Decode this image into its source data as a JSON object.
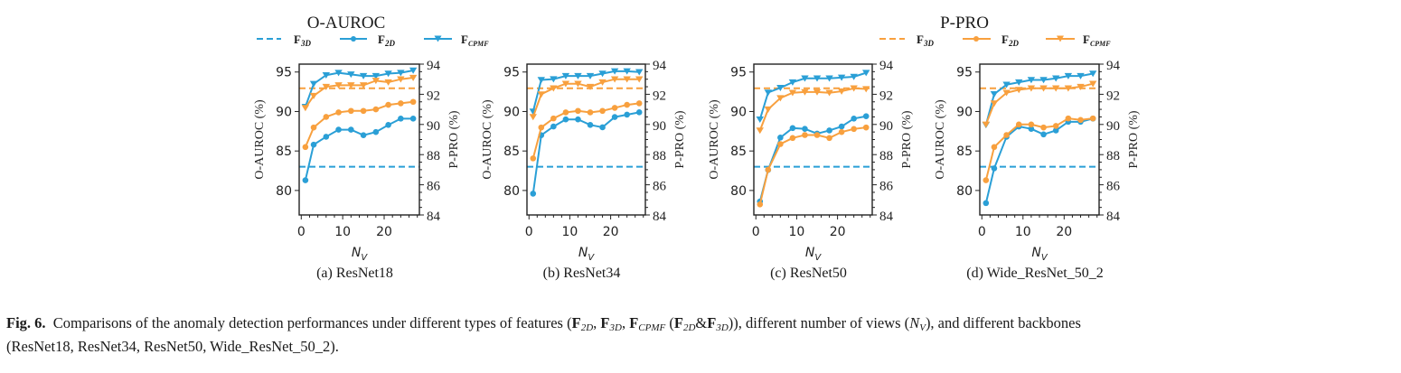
{
  "colors": {
    "blue": "#2a9fd6",
    "orange": "#f8a03e",
    "axis": "#222222",
    "text": "#1a1a1a"
  },
  "legends": [
    {
      "title": "O-AUROC",
      "color_key": "blue",
      "entries": [
        {
          "label": "F",
          "sub": "3D",
          "style": "dashed",
          "marker": "none"
        },
        {
          "label": "F",
          "sub": "2D",
          "style": "solid",
          "marker": "circle"
        },
        {
          "label": "F",
          "sub": "CPMF",
          "style": "solid",
          "marker": "triangle-down"
        }
      ]
    },
    {
      "title": "P-PRO",
      "color_key": "orange",
      "entries": [
        {
          "label": "F",
          "sub": "3D",
          "style": "dashed",
          "marker": "none"
        },
        {
          "label": "F",
          "sub": "2D",
          "style": "solid",
          "marker": "circle"
        },
        {
          "label": "F",
          "sub": "CPMF",
          "style": "solid",
          "marker": "triangle-down"
        }
      ]
    }
  ],
  "chart_data": [
    {
      "type": "line",
      "title": "(a) ResNet18",
      "xlabel": "N_V",
      "ylabel": "O-AUROC (%)",
      "y2label": "P-PRO (%)",
      "xlim": [
        -0.5,
        28.5
      ],
      "ylim": [
        76.9,
        96.0
      ],
      "y2lim": [
        84,
        94
      ],
      "xticks": [
        0,
        10,
        20
      ],
      "yticks": [
        80,
        85,
        90,
        95
      ],
      "y2ticks": [
        84,
        86,
        88,
        90,
        92,
        94
      ],
      "x": [
        1,
        3,
        6,
        9,
        12,
        15,
        18,
        21,
        24,
        27
      ],
      "series": [
        {
          "name": "O-AUROC F2D",
          "axis": "left",
          "color": "blue",
          "marker": "circle",
          "values": [
            81.3,
            85.8,
            86.8,
            87.7,
            87.7,
            87.0,
            87.4,
            88.3,
            89.1,
            89.1
          ]
        },
        {
          "name": "O-AUROC FCPMF",
          "axis": "left",
          "color": "blue",
          "marker": "triangle-down",
          "values": [
            90.6,
            93.5,
            94.6,
            94.9,
            94.7,
            94.5,
            94.5,
            94.8,
            94.9,
            95.2
          ]
        },
        {
          "name": "P-PRO F2D",
          "axis": "right",
          "color": "orange",
          "marker": "circle",
          "values": [
            88.5,
            89.8,
            90.5,
            90.8,
            90.9,
            90.9,
            91.0,
            91.3,
            91.4,
            91.5
          ]
        },
        {
          "name": "P-PRO FCPMF",
          "axis": "right",
          "color": "orange",
          "marker": "triangle-down",
          "values": [
            91.1,
            91.9,
            92.5,
            92.6,
            92.6,
            92.6,
            92.9,
            92.8,
            93.0,
            93.1
          ]
        }
      ],
      "baselines": [
        {
          "name": "O-AUROC F3D",
          "axis": "left",
          "color": "blue",
          "value": 83.0
        },
        {
          "name": "P-PRO F3D",
          "axis": "right",
          "color": "orange",
          "value": 92.4
        }
      ]
    },
    {
      "type": "line",
      "title": "(b) ResNet34",
      "xlabel": "N_V",
      "ylabel": "O-AUROC (%)",
      "y2label": "P-PRO (%)",
      "xlim": [
        -0.5,
        28.5
      ],
      "ylim": [
        76.9,
        96.0
      ],
      "y2lim": [
        84,
        94
      ],
      "xticks": [
        0,
        10,
        20
      ],
      "yticks": [
        80,
        85,
        90,
        95
      ],
      "y2ticks": [
        84,
        86,
        88,
        90,
        92,
        94
      ],
      "x": [
        1,
        3,
        6,
        9,
        12,
        15,
        18,
        21,
        24,
        27
      ],
      "series": [
        {
          "name": "O-AUROC F2D",
          "axis": "left",
          "color": "blue",
          "marker": "circle",
          "values": [
            79.6,
            87.0,
            88.1,
            89.0,
            89.0,
            88.3,
            88.0,
            89.3,
            89.6,
            89.9
          ]
        },
        {
          "name": "O-AUROC FCPMF",
          "axis": "left",
          "color": "blue",
          "marker": "triangle-down",
          "values": [
            90.0,
            94.0,
            94.1,
            94.5,
            94.5,
            94.5,
            94.8,
            95.1,
            95.1,
            95.0
          ]
        },
        {
          "name": "P-PRO F2D",
          "axis": "right",
          "color": "orange",
          "marker": "circle",
          "values": [
            87.75,
            89.8,
            90.4,
            90.8,
            90.9,
            90.8,
            90.9,
            91.1,
            91.3,
            91.4
          ]
        },
        {
          "name": "P-PRO FCPMF",
          "axis": "right",
          "color": "orange",
          "marker": "triangle-down",
          "values": [
            90.5,
            92.0,
            92.4,
            92.7,
            92.7,
            92.5,
            92.8,
            93.0,
            93.0,
            93.0
          ]
        }
      ],
      "baselines": [
        {
          "name": "O-AUROC F3D",
          "axis": "left",
          "color": "blue",
          "value": 83.0
        },
        {
          "name": "P-PRO F3D",
          "axis": "right",
          "color": "orange",
          "value": 92.4
        }
      ]
    },
    {
      "type": "line",
      "title": "(c) ResNet50",
      "xlabel": "N_V",
      "ylabel": "O-AUROC (%)",
      "y2label": "P-PRO (%)",
      "xlim": [
        -0.5,
        28.5
      ],
      "ylim": [
        76.9,
        96.0
      ],
      "y2lim": [
        84,
        94
      ],
      "xticks": [
        0,
        10,
        20
      ],
      "yticks": [
        80,
        85,
        90,
        95
      ],
      "y2ticks": [
        84,
        86,
        88,
        90,
        92,
        94
      ],
      "x": [
        1,
        3,
        6,
        9,
        12,
        15,
        18,
        21,
        24,
        27
      ],
      "series": [
        {
          "name": "O-AUROC F2D",
          "axis": "left",
          "color": "blue",
          "marker": "circle",
          "values": [
            78.6,
            82.6,
            86.7,
            87.9,
            87.8,
            87.2,
            87.6,
            88.1,
            89.1,
            89.4
          ]
        },
        {
          "name": "O-AUROC FCPMF",
          "axis": "left",
          "color": "blue",
          "marker": "triangle-down",
          "values": [
            89.0,
            92.4,
            93.0,
            93.7,
            94.2,
            94.2,
            94.2,
            94.3,
            94.4,
            94.9
          ]
        },
        {
          "name": "P-PRO F2D",
          "axis": "right",
          "color": "orange",
          "marker": "circle",
          "values": [
            84.7,
            87.0,
            88.7,
            89.1,
            89.3,
            89.3,
            89.1,
            89.5,
            89.7,
            89.8
          ]
        },
        {
          "name": "P-PRO FCPMF",
          "axis": "right",
          "color": "orange",
          "marker": "triangle-down",
          "values": [
            89.6,
            91.0,
            91.75,
            92.1,
            92.15,
            92.15,
            92.1,
            92.2,
            92.4,
            92.35
          ]
        }
      ],
      "baselines": [
        {
          "name": "O-AUROC F3D",
          "axis": "left",
          "color": "blue",
          "value": 83.0
        },
        {
          "name": "P-PRO F3D",
          "axis": "right",
          "color": "orange",
          "value": 92.4
        }
      ]
    },
    {
      "type": "line",
      "title": "(d) Wide_ResNet_50_2",
      "xlabel": "N_V",
      "ylabel": "O-AUROC (%)",
      "y2label": "P-PRO (%)",
      "xlim": [
        -0.5,
        28.5
      ],
      "ylim": [
        76.9,
        96.0
      ],
      "y2lim": [
        84,
        94
      ],
      "xticks": [
        0,
        10,
        20
      ],
      "yticks": [
        80,
        85,
        90,
        95
      ],
      "y2ticks": [
        84,
        86,
        88,
        90,
        92,
        94
      ],
      "x": [
        1,
        3,
        6,
        9,
        12,
        15,
        18,
        21,
        24,
        27
      ],
      "series": [
        {
          "name": "O-AUROC F2D",
          "axis": "left",
          "color": "blue",
          "marker": "circle",
          "values": [
            78.4,
            82.8,
            86.8,
            88.1,
            87.8,
            87.1,
            87.6,
            88.7,
            88.7,
            89.1
          ]
        },
        {
          "name": "O-AUROC FCPMF",
          "axis": "left",
          "color": "blue",
          "marker": "triangle-down",
          "values": [
            88.3,
            92.2,
            93.4,
            93.7,
            94.0,
            94.0,
            94.2,
            94.5,
            94.5,
            94.8
          ]
        },
        {
          "name": "P-PRO F2D",
          "axis": "right",
          "color": "orange",
          "marker": "circle",
          "values": [
            86.3,
            88.5,
            89.3,
            90.0,
            90.0,
            89.8,
            89.9,
            90.4,
            90.3,
            90.4
          ]
        },
        {
          "name": "P-PRO FCPMF",
          "axis": "right",
          "color": "orange",
          "marker": "triangle-down",
          "values": [
            90.0,
            91.4,
            92.1,
            92.3,
            92.4,
            92.4,
            92.4,
            92.4,
            92.5,
            92.7
          ]
        }
      ],
      "baselines": [
        {
          "name": "O-AUROC F3D",
          "axis": "left",
          "color": "blue",
          "value": 83.0
        },
        {
          "name": "P-PRO F3D",
          "axis": "right",
          "color": "orange",
          "value": 92.4
        }
      ]
    }
  ],
  "caption": {
    "label": "Fig. 6.",
    "text_1": "Comparisons of the anomaly detection performances under different types of features (",
    "f": "F",
    "sub_2d": "2D",
    "sub_3d": "3D",
    "sub_cpmf": "CPMF",
    "sep": ", ",
    "amp": "&",
    "text_2": "), different number of views (",
    "nv_n": "N",
    "nv_sub": "V",
    "text_3": "), and different backbones",
    "line_2": "(ResNet18, ResNet34, ResNet50, Wide_ResNet_50_2)."
  }
}
